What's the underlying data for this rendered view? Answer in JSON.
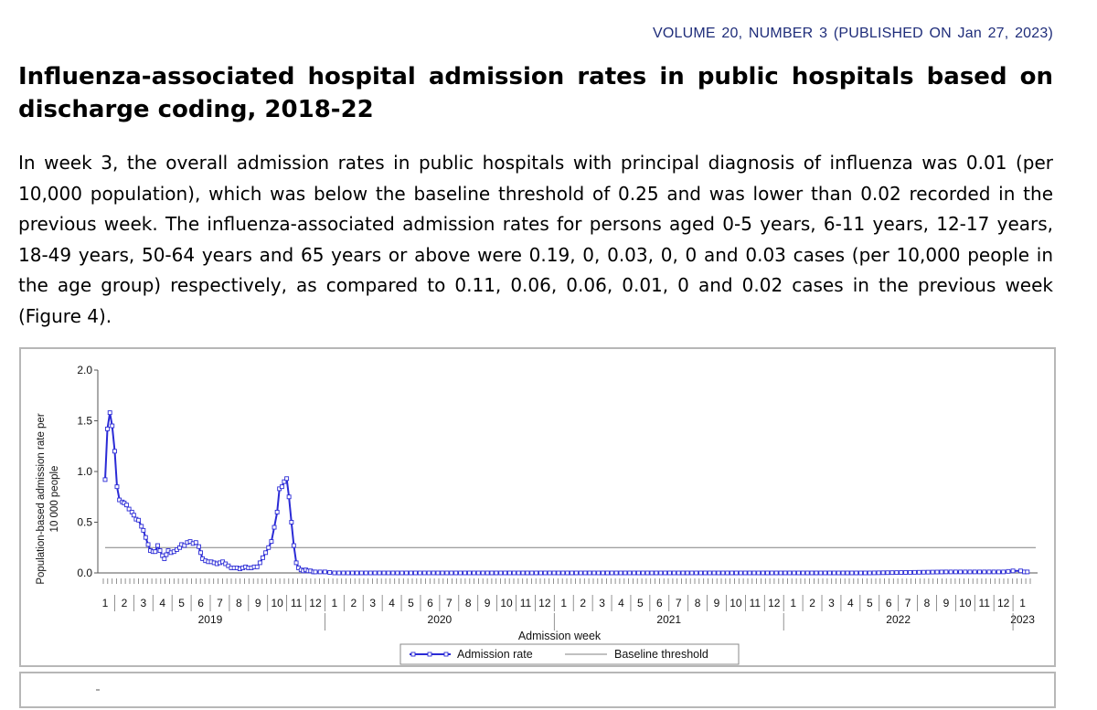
{
  "header": {
    "volume_line": "VOLUME 20, NUMBER 3 (PUBLISHED ON Jan 27, 2023)"
  },
  "title": "Influenza-associated hospital admission rates in public hospitals based on discharge coding, 2018-22",
  "paragraph": "In week 3, the overall admission rates in public hospitals with principal diagnosis of influenza was 0.01 (per 10,000 population), which was below the baseline threshold of 0.25 and was lower than 0.02 recorded in the previous week. The influenza-associated admission rates for persons aged 0-5 years, 6-11 years, 12-17 years, 18-49 years, 50-64 years and 65 years or above were 0.19, 0, 0.03, 0, 0 and 0.03 cases (per 10,000 people in the age group) respectively, as compared to 0.11, 0.06, 0.06, 0.01, 0 and 0.02 cases in the previous week (Figure 4).",
  "colors": {
    "series": "#2b2bd6",
    "baseline": "#808080",
    "header_text": "#1f2d7a"
  },
  "chart_data": {
    "type": "line",
    "ylabel": "Population-based admission rate per 10 000 people",
    "xlabel": "Admission week",
    "ylim": [
      0,
      2.0
    ],
    "yticks": [
      "2.0",
      "1.5",
      "1.0",
      "0.5",
      "0.0"
    ],
    "month_labels": [
      "1",
      "2",
      "3",
      "4",
      "5",
      "6",
      "7",
      "8",
      "9",
      "10",
      "11",
      "12",
      "1",
      "2",
      "3",
      "4",
      "5",
      "6",
      "7",
      "8",
      "9",
      "10",
      "11",
      "12",
      "1",
      "2",
      "3",
      "4",
      "5",
      "6",
      "7",
      "8",
      "9",
      "10",
      "11",
      "12",
      "1",
      "2",
      "3",
      "4",
      "5",
      "6",
      "7",
      "8",
      "9",
      "10",
      "11",
      "12",
      "1"
    ],
    "year_labels": [
      "2019",
      "2020",
      "2021",
      "2022",
      "2023"
    ],
    "baseline_threshold": 0.25,
    "legend": [
      "Admission rate",
      "Baseline threshold"
    ],
    "series": [
      {
        "name": "Admission rate",
        "points": [
          [
            0.0,
            0.92
          ],
          [
            0.12,
            1.42
          ],
          [
            0.25,
            1.58
          ],
          [
            0.37,
            1.45
          ],
          [
            0.5,
            1.2
          ],
          [
            0.62,
            0.85
          ],
          [
            0.75,
            0.72
          ],
          [
            0.9,
            0.7
          ],
          [
            1.0,
            0.69
          ],
          [
            1.12,
            0.67
          ],
          [
            1.25,
            0.63
          ],
          [
            1.4,
            0.6
          ],
          [
            1.5,
            0.57
          ],
          [
            1.62,
            0.53
          ],
          [
            1.75,
            0.52
          ],
          [
            1.9,
            0.46
          ],
          [
            2.0,
            0.42
          ],
          [
            2.12,
            0.35
          ],
          [
            2.25,
            0.28
          ],
          [
            2.37,
            0.22
          ],
          [
            2.5,
            0.21
          ],
          [
            2.62,
            0.21
          ],
          [
            2.75,
            0.27
          ],
          [
            2.87,
            0.22
          ],
          [
            3.0,
            0.17
          ],
          [
            3.1,
            0.14
          ],
          [
            3.2,
            0.18
          ],
          [
            3.3,
            0.22
          ],
          [
            3.45,
            0.2
          ],
          [
            3.6,
            0.21
          ],
          [
            3.75,
            0.23
          ],
          [
            3.9,
            0.25
          ],
          [
            4.0,
            0.28
          ],
          [
            4.15,
            0.27
          ],
          [
            4.3,
            0.3
          ],
          [
            4.45,
            0.31
          ],
          [
            4.6,
            0.29
          ],
          [
            4.75,
            0.3
          ],
          [
            4.9,
            0.26
          ],
          [
            5.0,
            0.2
          ],
          [
            5.1,
            0.14
          ],
          [
            5.25,
            0.12
          ],
          [
            5.4,
            0.11
          ],
          [
            5.55,
            0.11
          ],
          [
            5.7,
            0.1
          ],
          [
            5.85,
            0.09
          ],
          [
            6.0,
            0.1
          ],
          [
            6.15,
            0.11
          ],
          [
            6.3,
            0.09
          ],
          [
            6.45,
            0.07
          ],
          [
            6.6,
            0.05
          ],
          [
            6.75,
            0.05
          ],
          [
            6.9,
            0.05
          ],
          [
            7.05,
            0.04
          ],
          [
            7.2,
            0.05
          ],
          [
            7.35,
            0.06
          ],
          [
            7.5,
            0.05
          ],
          [
            7.65,
            0.05
          ],
          [
            7.8,
            0.06
          ],
          [
            7.95,
            0.06
          ],
          [
            8.1,
            0.1
          ],
          [
            8.25,
            0.15
          ],
          [
            8.4,
            0.2
          ],
          [
            8.55,
            0.25
          ],
          [
            8.7,
            0.31
          ],
          [
            8.85,
            0.45
          ],
          [
            9.0,
            0.6
          ],
          [
            9.12,
            0.83
          ],
          [
            9.25,
            0.85
          ],
          [
            9.37,
            0.9
          ],
          [
            9.5,
            0.93
          ],
          [
            9.62,
            0.75
          ],
          [
            9.75,
            0.5
          ],
          [
            9.87,
            0.27
          ],
          [
            10.0,
            0.1
          ],
          [
            10.12,
            0.05
          ],
          [
            10.25,
            0.03
          ],
          [
            10.37,
            0.02
          ],
          [
            10.5,
            0.03
          ],
          [
            10.62,
            0.02
          ],
          [
            10.75,
            0.02
          ],
          [
            10.9,
            0.01
          ],
          [
            11.0,
            0.01
          ],
          [
            11.5,
            0.01
          ],
          [
            12.0,
            0.0
          ],
          [
            20.0,
            0.0
          ],
          [
            30.0,
            0.0
          ],
          [
            40.0,
            0.0
          ],
          [
            44.0,
            0.01
          ],
          [
            46.0,
            0.01
          ],
          [
            47.0,
            0.01
          ],
          [
            47.5,
            0.02
          ],
          [
            47.9,
            0.02
          ],
          [
            48.1,
            0.01
          ],
          [
            48.25,
            0.01
          ]
        ]
      }
    ]
  }
}
